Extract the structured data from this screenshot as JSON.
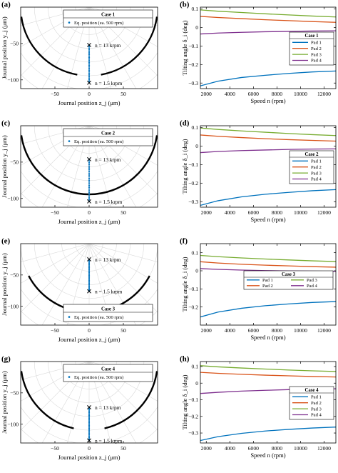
{
  "panel_labels": [
    "(a)",
    "(b)",
    "(c)",
    "(d)",
    "(e)",
    "(f)",
    "(g)",
    "(h)"
  ],
  "colors": {
    "pad1": "#0072BD",
    "pad2": "#D95319",
    "pad3": "#77AC30",
    "pad4": "#7E2F8E",
    "eq_marker": "#0072BD",
    "pad_arc": "#000000"
  },
  "chart_data": [
    {
      "panel": "(a)",
      "type": "scatter",
      "xlabel": "Journal position z_j (μm)",
      "ylabel": "Journal position y_j (μm)",
      "xlim": [
        -100,
        100
      ],
      "ylim": [
        -112,
        0
      ],
      "xticks": [
        -50,
        0,
        50
      ],
      "yticks": [
        -50,
        -100
      ],
      "legend": {
        "title": "Case 1",
        "entries": [
          "Eq. position (ea. 500 rpm)"
        ],
        "location": "top-right"
      },
      "eq_positions": {
        "z": 0,
        "y_start": -104,
        "y_end": -52
      },
      "markers": [
        {
          "z": 0,
          "y": -52,
          "label": "n = 13 krpm"
        },
        {
          "z": 0,
          "y": -104,
          "label": "n = 1.5 krpm"
        }
      ],
      "pads": [
        {
          "from_deg": 188,
          "to_deg": 260
        },
        {
          "from_deg": 280,
          "to_deg": 352
        }
      ]
    },
    {
      "panel": "(b)",
      "type": "line",
      "xlabel": "Speed n (rpm)",
      "ylabel": "Tilting angle δ_i (deg)",
      "xlim": [
        1500,
        13000
      ],
      "ylim": [
        -0.33,
        0.11
      ],
      "xticks": [
        2000,
        4000,
        6000,
        8000,
        10000,
        12000
      ],
      "yticks": [
        0.1,
        0,
        -0.1,
        -0.2,
        -0.3
      ],
      "legend": {
        "title": "Case 1",
        "entries": [
          "Pad 1",
          "Pad 2",
          "Pad 3",
          "Pad 4"
        ],
        "location": "center-right"
      },
      "x": [
        1500,
        3000,
        5000,
        7000,
        9000,
        11000,
        13000
      ],
      "series": [
        {
          "name": "Pad 1",
          "values": [
            -0.315,
            -0.29,
            -0.27,
            -0.258,
            -0.248,
            -0.24,
            -0.235
          ]
        },
        {
          "name": "Pad 2",
          "values": [
            0.06,
            0.054,
            0.048,
            0.042,
            0.037,
            0.032,
            0.028
          ]
        },
        {
          "name": "Pad 3",
          "values": [
            0.095,
            0.088,
            0.081,
            0.074,
            0.068,
            0.062,
            0.057
          ]
        },
        {
          "name": "Pad 4",
          "values": [
            -0.035,
            -0.03,
            -0.026,
            -0.023,
            -0.021,
            -0.019,
            -0.018
          ]
        }
      ]
    },
    {
      "panel": "(c)",
      "type": "scatter",
      "xlabel": "Journal position z_j (μm)",
      "ylabel": "Journal position y_j (μm)",
      "xlim": [
        -100,
        100
      ],
      "ylim": [
        -112,
        0
      ],
      "xticks": [
        -50,
        0,
        50
      ],
      "yticks": [
        -50,
        -100
      ],
      "legend": {
        "title": "Case 2",
        "entries": [
          "Eq. position (ea. 500 rpm)"
        ],
        "location": "top-right"
      },
      "eq_positions": {
        "z": 0,
        "y_start": -104,
        "y_end": -46
      },
      "markers": [
        {
          "z": 0,
          "y": -46,
          "label": "n = 13 krpm"
        },
        {
          "z": 0,
          "y": -104,
          "label": "n = 1.5 krpm"
        }
      ],
      "pads": [
        {
          "from_deg": 188,
          "to_deg": 352
        }
      ]
    },
    {
      "panel": "(d)",
      "type": "line",
      "xlabel": "Speed n (rpm)",
      "ylabel": "Tilting angle δ_i (deg)",
      "xlim": [
        1500,
        13000
      ],
      "ylim": [
        -0.33,
        0.11
      ],
      "xticks": [
        2000,
        4000,
        6000,
        8000,
        10000,
        12000
      ],
      "yticks": [
        0.1,
        0,
        -0.1,
        -0.2,
        -0.3
      ],
      "legend": {
        "title": "Case 2",
        "entries": [
          "Pad 1",
          "Pad 2",
          "Pad 3",
          "Pad 4"
        ],
        "location": "center-right"
      },
      "x": [
        1500,
        3000,
        5000,
        7000,
        9000,
        11000,
        13000
      ],
      "series": [
        {
          "name": "Pad 1",
          "values": [
            -0.32,
            -0.295,
            -0.274,
            -0.26,
            -0.25,
            -0.241,
            -0.235
          ]
        },
        {
          "name": "Pad 2",
          "values": [
            0.06,
            0.053,
            0.046,
            0.04,
            0.035,
            0.031,
            0.027
          ]
        },
        {
          "name": "Pad 3",
          "values": [
            0.098,
            0.09,
            0.082,
            0.075,
            0.068,
            0.062,
            0.057
          ]
        },
        {
          "name": "Pad 4",
          "values": [
            -0.035,
            -0.029,
            -0.024,
            -0.021,
            -0.018,
            -0.016,
            -0.015
          ]
        }
      ]
    },
    {
      "panel": "(e)",
      "type": "scatter",
      "xlabel": "Journal position z_j (μm)",
      "ylabel": "Journal position y_j (μm)",
      "xlim": [
        -100,
        100
      ],
      "ylim": [
        -130,
        0
      ],
      "xticks": [
        -50,
        0,
        50
      ],
      "yticks": [
        -50,
        -100
      ],
      "legend": {
        "title": "Case 3",
        "entries": [
          "Eq. position (ea. 500 rpm)"
        ],
        "location": "bottom-right"
      },
      "eq_positions": {
        "z": 0,
        "y_start": -76,
        "y_end": -25
      },
      "markers": [
        {
          "z": 0,
          "y": -25,
          "label": "n = 13 krpm"
        },
        {
          "z": 0,
          "y": -76,
          "label": "n = 1.5 krpm"
        }
      ],
      "pads": [
        {
          "from_deg": 208,
          "to_deg": 262
        },
        {
          "from_deg": 278,
          "to_deg": 332
        }
      ]
    },
    {
      "panel": "(f)",
      "type": "line",
      "xlabel": "Speed n (rpm)",
      "ylabel": "Tilting angle δ_i (deg)",
      "xlim": [
        1500,
        13000
      ],
      "ylim": [
        -0.3,
        0.15
      ],
      "xticks": [
        2000,
        4000,
        6000,
        8000,
        10000,
        12000
      ],
      "yticks": [
        0.1,
        0,
        -0.1,
        -0.2
      ],
      "legend": {
        "title": "Case 3",
        "entries": [
          "Pad 1",
          "Pad 3",
          "Pad 2",
          "Pad 4"
        ],
        "location": "center-right"
      },
      "x": [
        1500,
        3000,
        5000,
        7000,
        9000,
        11000,
        13000
      ],
      "series": [
        {
          "name": "Pad 1",
          "values": [
            -0.255,
            -0.228,
            -0.207,
            -0.193,
            -0.183,
            -0.175,
            -0.17
          ]
        },
        {
          "name": "Pad 2",
          "values": [
            0.05,
            0.043,
            0.036,
            0.031,
            0.027,
            0.023,
            0.02
          ]
        },
        {
          "name": "Pad 3",
          "values": [
            0.085,
            0.078,
            0.071,
            0.065,
            0.06,
            0.055,
            0.051
          ]
        },
        {
          "name": "Pad 4",
          "values": [
            0.012,
            0.008,
            0.004,
            0.001,
            -0.001,
            -0.002,
            -0.003
          ]
        }
      ]
    },
    {
      "panel": "(g)",
      "type": "scatter",
      "xlabel": "Journal position z_j (μm)",
      "ylabel": "Journal position y_j (μm)",
      "xlim": [
        -100,
        100
      ],
      "ylim": [
        -130,
        0
      ],
      "xticks": [
        -50,
        0,
        50
      ],
      "yticks": [
        -50,
        -100
      ],
      "legend": {
        "title": "Case 4",
        "entries": [
          "Eq. position (ea. 500 rpm)"
        ],
        "location": "top-right"
      },
      "eq_positions": {
        "z": 0,
        "y_start": -126,
        "y_end": -73
      },
      "markers": [
        {
          "z": 0,
          "y": -73,
          "label": "n = 13 krpm"
        },
        {
          "z": 0,
          "y": -126,
          "label": "n = 1.5 krpm"
        }
      ],
      "pads": [
        {
          "from_deg": 188,
          "to_deg": 257
        },
        {
          "from_deg": 283,
          "to_deg": 352
        }
      ]
    },
    {
      "panel": "(h)",
      "type": "line",
      "xlabel": "Speed n (rpm)",
      "ylabel": "Tilting angle δ_i (deg)",
      "xlim": [
        1500,
        13000
      ],
      "ylim": [
        -0.36,
        0.13
      ],
      "xticks": [
        2000,
        4000,
        6000,
        8000,
        10000,
        12000
      ],
      "yticks": [
        0.1,
        0,
        -0.1,
        -0.2,
        -0.3
      ],
      "legend": {
        "title": "Case 4",
        "entries": [
          "Pad 1",
          "Pad 2",
          "Pad 3",
          "Pad 4"
        ],
        "location": "center-right"
      },
      "x": [
        1500,
        3000,
        5000,
        7000,
        9000,
        11000,
        13000
      ],
      "series": [
        {
          "name": "Pad 1",
          "values": [
            -0.345,
            -0.322,
            -0.302,
            -0.288,
            -0.278,
            -0.27,
            -0.264
          ]
        },
        {
          "name": "Pad 2",
          "values": [
            0.065,
            0.059,
            0.053,
            0.048,
            0.044,
            0.04,
            0.037
          ]
        },
        {
          "name": "Pad 3",
          "values": [
            0.105,
            0.098,
            0.091,
            0.085,
            0.079,
            0.074,
            0.07
          ]
        },
        {
          "name": "Pad 4",
          "values": [
            -0.062,
            -0.055,
            -0.048,
            -0.043,
            -0.039,
            -0.036,
            -0.034
          ]
        }
      ]
    }
  ]
}
